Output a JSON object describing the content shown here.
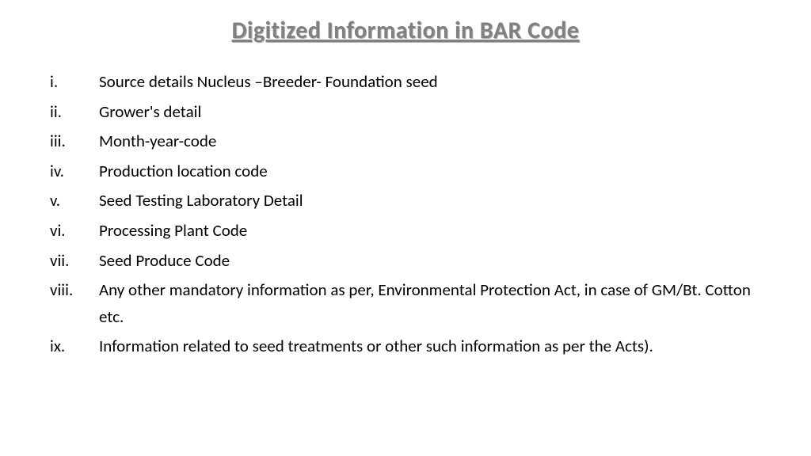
{
  "title": "Digitized Information in BAR Code",
  "title_color": "#808080",
  "title_fontsize": 30,
  "body_fontsize": 21,
  "background_color": "#ffffff",
  "text_color": "#000000",
  "items": [
    {
      "marker": "i.",
      "text": "Source details Nucleus –Breeder- Foundation seed"
    },
    {
      "marker": "ii.",
      "text": "Grower's detail"
    },
    {
      "marker": "iii.",
      "text": "Month-year-code"
    },
    {
      "marker": "iv.",
      "text": "Production location code"
    },
    {
      "marker": "v.",
      "text": "Seed Testing Laboratory Detail"
    },
    {
      "marker": "vi.",
      "text": "Processing Plant Code"
    },
    {
      "marker": "vii.",
      "text": "Seed Produce Code"
    },
    {
      "marker": "viii.",
      "text": "Any other mandatory information as per, Environmental Protection Act, in case of GM/Bt. Cotton etc."
    },
    {
      "marker": "ix.",
      "text": "Information related to seed treatments or other such information as per the Acts)."
    }
  ]
}
